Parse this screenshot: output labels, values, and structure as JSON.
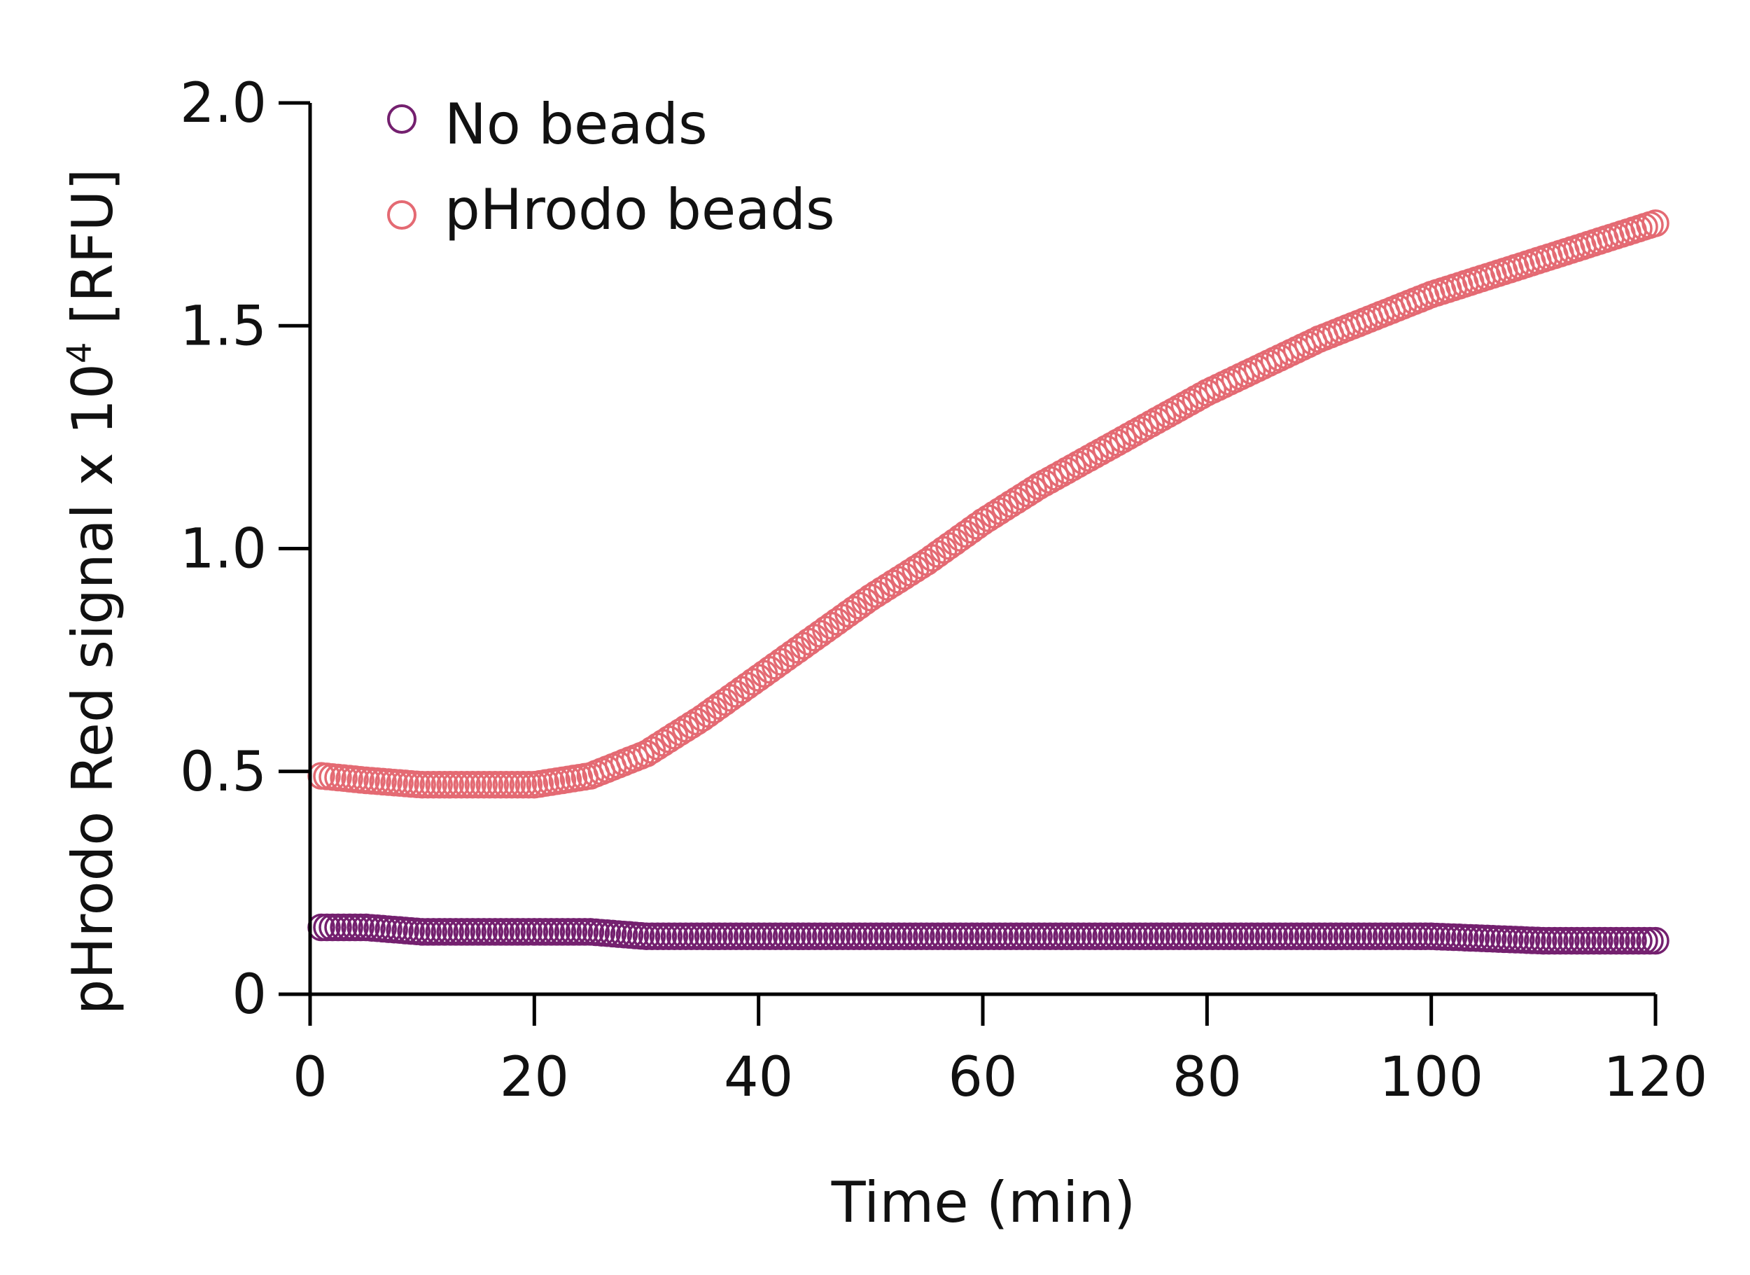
{
  "chart_data": {
    "type": "scatter",
    "title": "",
    "xlabel": "Time (min)",
    "ylabel_main": "pHrodo Red signal x 10",
    "ylabel_sup": "4",
    "ylabel_unit": " [RFU]",
    "xlim": [
      0,
      120
    ],
    "ylim": [
      0,
      2.0
    ],
    "x_ticks": [
      0,
      20,
      40,
      60,
      80,
      100,
      120
    ],
    "x_tick_labels": [
      "0",
      "20",
      "40",
      "60",
      "80",
      "100",
      "120"
    ],
    "y_ticks": [
      0,
      0.5,
      1.0,
      1.5,
      2.0
    ],
    "y_tick_labels": [
      "0",
      "0.5",
      "1.0",
      "1.5",
      "2.0"
    ],
    "grid": false,
    "legend_position": "top-left",
    "marker": "open-circle",
    "series": [
      {
        "name": "No beads",
        "color": "#74206f",
        "x": [
          1,
          5,
          10,
          15,
          20,
          25,
          30,
          40,
          50,
          60,
          70,
          80,
          90,
          100,
          110,
          120
        ],
        "y": [
          0.15,
          0.15,
          0.14,
          0.14,
          0.14,
          0.14,
          0.13,
          0.13,
          0.13,
          0.13,
          0.13,
          0.13,
          0.13,
          0.13,
          0.12,
          0.12
        ]
      },
      {
        "name": "pHrodo beads",
        "color": "#e46a73",
        "x": [
          1,
          5,
          10,
          15,
          20,
          25,
          30,
          35,
          40,
          45,
          50,
          55,
          60,
          65,
          70,
          75,
          80,
          85,
          90,
          95,
          100,
          105,
          110,
          115,
          120
        ],
        "y": [
          0.49,
          0.48,
          0.47,
          0.47,
          0.47,
          0.49,
          0.54,
          0.62,
          0.71,
          0.8,
          0.89,
          0.97,
          1.06,
          1.14,
          1.21,
          1.28,
          1.35,
          1.41,
          1.47,
          1.52,
          1.57,
          1.61,
          1.65,
          1.69,
          1.73
        ]
      }
    ]
  }
}
